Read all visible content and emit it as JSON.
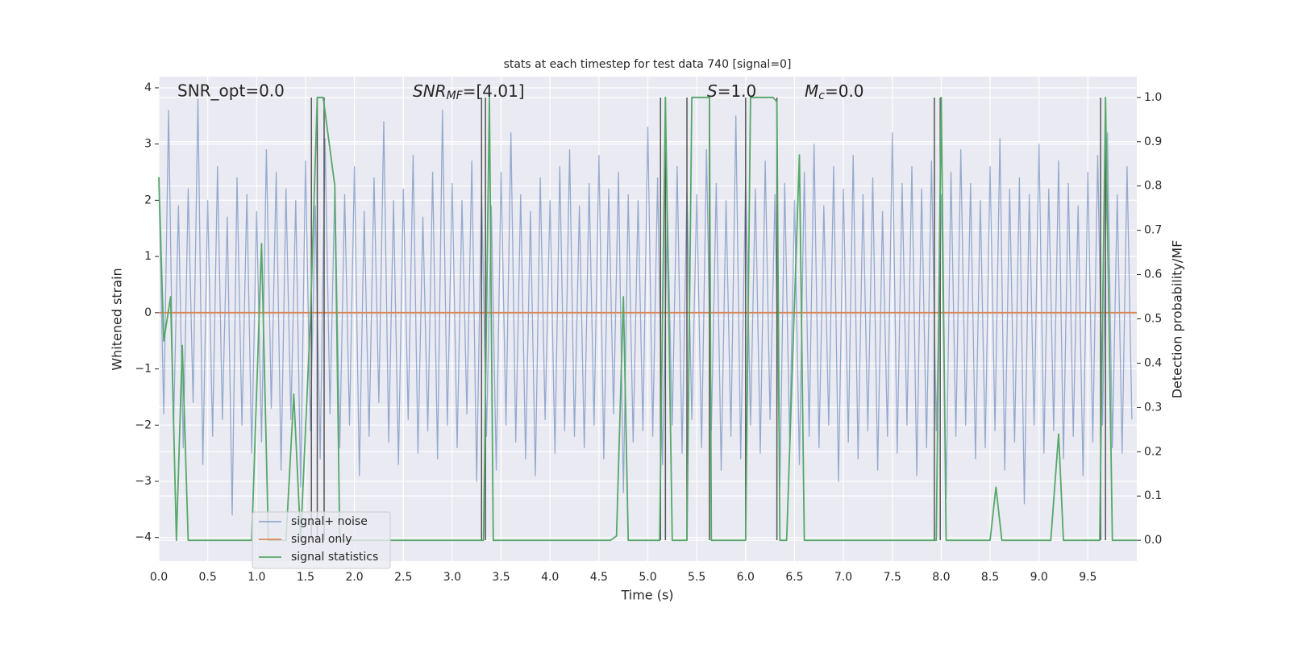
{
  "chart_data": {
    "type": "line",
    "title": "stats at each timestep for test data 740 [signal=0]",
    "xlabel": "Time (s)",
    "ylabel": "Whitened strain",
    "y2label": "Detection probability/MF",
    "annotations": [
      {
        "text": "SNR_opt=0.0"
      },
      {
        "base": "SNR",
        "sub": "MF",
        "rest": "=[4.01]"
      },
      {
        "base": "S",
        "rest": "=1.0"
      },
      {
        "base": "M",
        "sub": "c",
        "rest": "=0.0"
      }
    ],
    "grid": true,
    "legend": "lower left",
    "xlim": [
      0,
      10
    ],
    "ylim": [
      -4.42,
      4.2
    ],
    "y2lim": [
      -0.047,
      1.047
    ],
    "xticks": [
      {
        "value": 0,
        "label": "0.0"
      },
      {
        "value": 0.5,
        "label": "0.5"
      },
      {
        "value": 1,
        "label": "1.0"
      },
      {
        "value": 1.5,
        "label": "1.5"
      },
      {
        "value": 2,
        "label": "2.0"
      },
      {
        "value": 2.5,
        "label": "2.5"
      },
      {
        "value": 3,
        "label": "3.0"
      },
      {
        "value": 3.5,
        "label": "3.5"
      },
      {
        "value": 4,
        "label": "4.0"
      },
      {
        "value": 4.5,
        "label": "4.5"
      },
      {
        "value": 5,
        "label": "5.0"
      },
      {
        "value": 5.5,
        "label": "5.5"
      },
      {
        "value": 6,
        "label": "6.0"
      },
      {
        "value": 6.5,
        "label": "6.5"
      },
      {
        "value": 7,
        "label": "7.0"
      },
      {
        "value": 7.5,
        "label": "7.5"
      },
      {
        "value": 8,
        "label": "8.0"
      },
      {
        "value": 8.5,
        "label": "8.5"
      },
      {
        "value": 9,
        "label": "9.0"
      },
      {
        "value": 9.5,
        "label": "9.5"
      }
    ],
    "yticks": [
      {
        "value": -4,
        "label": "−4"
      },
      {
        "value": -3,
        "label": "−3"
      },
      {
        "value": -2,
        "label": "−2"
      },
      {
        "value": -1,
        "label": "−1"
      },
      0,
      1,
      2,
      3,
      4
    ],
    "y2ticks": [
      {
        "value": 0,
        "label": "0.0"
      },
      {
        "value": 0.1,
        "label": "0.1"
      },
      {
        "value": 0.2,
        "label": "0.2"
      },
      {
        "value": 0.3,
        "label": "0.3"
      },
      {
        "value": 0.4,
        "label": "0.4"
      },
      {
        "value": 0.5,
        "label": "0.5"
      },
      {
        "value": 0.6,
        "label": "0.6"
      },
      {
        "value": 0.7,
        "label": "0.7"
      },
      {
        "value": 0.8,
        "label": "0.8"
      },
      {
        "value": 0.9,
        "label": "0.9"
      },
      {
        "value": 1,
        "label": "1.0"
      }
    ],
    "vlines": {
      "color": "#555555",
      "x": [
        1.56,
        1.62,
        1.69,
        3.3,
        3.34,
        5.13,
        5.18,
        5.4,
        5.63,
        6.0,
        6.32,
        7.93,
        7.99,
        9.63,
        9.68
      ]
    },
    "series": [
      {
        "name": "signal+ noise",
        "color": "#4c72b0",
        "x": [
          0,
          0.05,
          0.1,
          0.15,
          0.2,
          0.25,
          0.3,
          0.35,
          0.4,
          0.45,
          0.5,
          0.55,
          0.6,
          0.65,
          0.7,
          0.75,
          0.8,
          0.85,
          0.9,
          0.95,
          1,
          1.05,
          1.1,
          1.15,
          1.2,
          1.25,
          1.3,
          1.35,
          1.4,
          1.45,
          1.5,
          1.55,
          1.6,
          1.65,
          1.7,
          1.75,
          1.8,
          1.85,
          1.9,
          1.95,
          2,
          2.05,
          2.1,
          2.15,
          2.2,
          2.25,
          2.3,
          2.35,
          2.4,
          2.45,
          2.5,
          2.55,
          2.6,
          2.65,
          2.7,
          2.75,
          2.8,
          2.85,
          2.9,
          2.95,
          3,
          3.05,
          3.1,
          3.15,
          3.2,
          3.25,
          3.3,
          3.35,
          3.4,
          3.45,
          3.5,
          3.55,
          3.6,
          3.65,
          3.7,
          3.75,
          3.8,
          3.85,
          3.9,
          3.95,
          4,
          4.05,
          4.1,
          4.15,
          4.2,
          4.25,
          4.3,
          4.35,
          4.4,
          4.45,
          4.5,
          4.55,
          4.6,
          4.65,
          4.7,
          4.75,
          4.8,
          4.85,
          4.9,
          4.95,
          5,
          5.05,
          5.1,
          5.15,
          5.2,
          5.25,
          5.3,
          5.35,
          5.4,
          5.45,
          5.5,
          5.55,
          5.6,
          5.65,
          5.7,
          5.75,
          5.8,
          5.85,
          5.9,
          5.95,
          6,
          6.05,
          6.1,
          6.15,
          6.2,
          6.25,
          6.3,
          6.35,
          6.4,
          6.45,
          6.5,
          6.55,
          6.6,
          6.65,
          6.7,
          6.75,
          6.8,
          6.85,
          6.9,
          6.95,
          7,
          7.05,
          7.1,
          7.15,
          7.2,
          7.25,
          7.3,
          7.35,
          7.4,
          7.45,
          7.5,
          7.55,
          7.6,
          7.65,
          7.7,
          7.75,
          7.8,
          7.85,
          7.9,
          7.95,
          8,
          8.05,
          8.1,
          8.15,
          8.2,
          8.25,
          8.3,
          8.35,
          8.4,
          8.45,
          8.5,
          8.55,
          8.6,
          8.65,
          8.7,
          8.75,
          8.8,
          8.85,
          8.9,
          8.95,
          9,
          9.05,
          9.1,
          9.15,
          9.2,
          9.25,
          9.3,
          9.35,
          9.4,
          9.45,
          9.5,
          9.55,
          9.6,
          9.65,
          9.7,
          9.75,
          9.8,
          9.85,
          9.9,
          9.95
        ],
        "values": [
          2.3,
          -1.8,
          3.6,
          -2.1,
          1.9,
          -2.4,
          2.2,
          -1.6,
          3.8,
          -2.7,
          2.0,
          -2.2,
          2.6,
          -1.9,
          1.7,
          -3.6,
          2.4,
          -2.0,
          2.1,
          -2.5,
          1.8,
          -2.3,
          2.9,
          -1.7,
          2.5,
          -2.8,
          2.2,
          -1.9,
          2.0,
          -3.1,
          2.7,
          -2.1,
          1.9,
          -2.6,
          3.1,
          -1.8,
          2.3,
          -2.4,
          2.1,
          -2.0,
          2.6,
          -2.9,
          1.8,
          -2.2,
          2.4,
          -1.6,
          3.4,
          -2.3,
          2.0,
          -2.7,
          2.2,
          -1.9,
          2.8,
          -2.5,
          1.7,
          -2.1,
          2.5,
          -2.6,
          3.6,
          -2.0,
          2.3,
          -2.4,
          2.0,
          -1.8,
          2.7,
          -3.0,
          2.2,
          -2.2,
          1.9,
          -2.8,
          2.5,
          -2.0,
          3.2,
          -2.3,
          2.1,
          -2.6,
          1.8,
          -2.9,
          2.4,
          -1.9,
          2.0,
          -2.5,
          2.6,
          -2.1,
          2.9,
          -2.2,
          1.9,
          -2.4,
          2.3,
          -2.0,
          2.8,
          -2.6,
          2.2,
          -1.8,
          2.5,
          -3.2,
          2.1,
          -2.3,
          2.0,
          -2.1,
          3.3,
          -2.2,
          2.4,
          -2.7,
          1.8,
          -2.0,
          2.6,
          -2.5,
          2.2,
          -1.9,
          2.1,
          -2.4,
          2.9,
          -2.1,
          2.3,
          -2.8,
          2.0,
          -2.2,
          3.5,
          -2.6,
          2.4,
          -2.0,
          2.2,
          -2.5,
          2.7,
          -1.9,
          2.1,
          -3.1,
          2.3,
          -2.3,
          2.0,
          -2.7,
          2.5,
          -2.2,
          3.0,
          -2.4,
          1.9,
          -2.0,
          2.6,
          -3.0,
          2.2,
          -2.3,
          2.8,
          -2.6,
          2.1,
          -2.1,
          2.4,
          -2.8,
          1.8,
          -2.2,
          3.2,
          -2.5,
          2.3,
          -2.0,
          2.6,
          -2.9,
          2.2,
          -2.4,
          2.7,
          -2.1,
          2.1,
          -3.3,
          2.5,
          -2.2,
          2.9,
          -2.0,
          2.3,
          -2.6,
          2.0,
          -2.4,
          2.6,
          -2.1,
          3.1,
          -2.8,
          2.2,
          -2.3,
          2.4,
          -3.4,
          2.1,
          -2.0,
          3.0,
          -2.5,
          2.2,
          -2.1,
          2.7,
          -2.6,
          2.3,
          -2.2,
          1.9,
          -2.9,
          2.5,
          -2.3,
          2.8,
          -2.0,
          3.2,
          -2.4,
          2.1,
          -2.5,
          2.6,
          -1.9
        ]
      },
      {
        "name": "signal only",
        "color": "#dd8452",
        "x": [
          0,
          10
        ],
        "values": [
          0,
          0
        ]
      },
      {
        "name": "signal statistics",
        "color": "#55a868",
        "axis": "y2",
        "x": [
          0,
          0.05,
          0.12,
          0.18,
          0.24,
          0.3,
          0.95,
          1.05,
          1.12,
          1.3,
          1.38,
          1.45,
          1.55,
          1.62,
          1.68,
          1.8,
          1.85,
          3.32,
          3.38,
          3.42,
          4.62,
          4.68,
          4.75,
          4.8,
          5.12,
          5.18,
          5.25,
          5.35,
          5.4,
          5.45,
          5.63,
          5.65,
          6.0,
          6.05,
          6.28,
          6.32,
          6.35,
          6.42,
          6.55,
          6.6,
          7.95,
          8.0,
          8.05,
          8.5,
          8.56,
          8.62,
          9.12,
          9.2,
          9.25,
          9.62,
          9.68,
          9.75,
          10
        ],
        "values": [
          0.82,
          0.45,
          0.55,
          0,
          0.44,
          0,
          0,
          0.67,
          0,
          0,
          0.33,
          0,
          0.5,
          1,
          1,
          0.8,
          0,
          0,
          1,
          0,
          0,
          0.01,
          0.55,
          0,
          0,
          1,
          0,
          0,
          0,
          1,
          1,
          0,
          0,
          1,
          1,
          0.99,
          0,
          0,
          0.87,
          0,
          0,
          1,
          0,
          0,
          0.12,
          0,
          0,
          0.24,
          0,
          0,
          1,
          0,
          0
        ]
      }
    ]
  }
}
